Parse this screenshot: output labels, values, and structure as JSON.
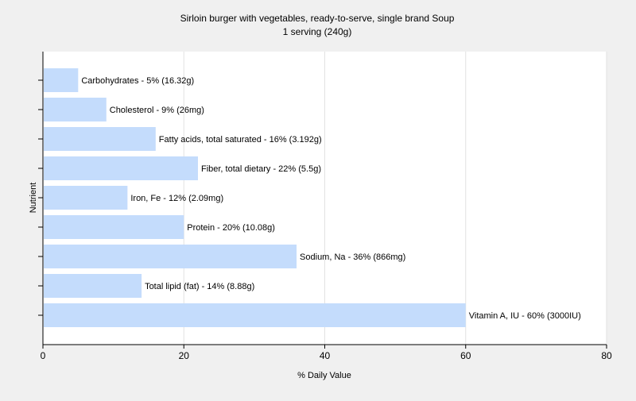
{
  "chart_data": {
    "type": "bar",
    "orientation": "horizontal",
    "title": "Sirloin burger with vegetables, ready-to-serve, single brand Soup",
    "subtitle": "1 serving (240g)",
    "xlabel": "% Daily Value",
    "ylabel": "Nutrient",
    "xlim": [
      0,
      80
    ],
    "xticks": [
      "0",
      "20",
      "40",
      "60",
      "80"
    ],
    "grid": true,
    "bar_color": "#c4dcfc",
    "categories": [
      "Carbohydrates",
      "Cholesterol",
      "Fatty acids, total saturated",
      "Fiber, total dietary",
      "Iron, Fe",
      "Protein",
      "Sodium, Na",
      "Total lipid (fat)",
      "Vitamin A, IU"
    ],
    "values": [
      5,
      9,
      16,
      22,
      12,
      20,
      36,
      14,
      60
    ],
    "data_labels": [
      "Carbohydrates - 5% (16.32g)",
      "Cholesterol - 9% (26mg)",
      "Fatty acids, total saturated - 16% (3.192g)",
      "Fiber, total dietary - 22% (5.5g)",
      "Iron, Fe - 12% (2.09mg)",
      "Protein - 20% (10.08g)",
      "Sodium, Na - 36% (866mg)",
      "Total lipid (fat) - 14% (8.88g)",
      "Vitamin A, IU - 60% (3000IU)"
    ]
  }
}
